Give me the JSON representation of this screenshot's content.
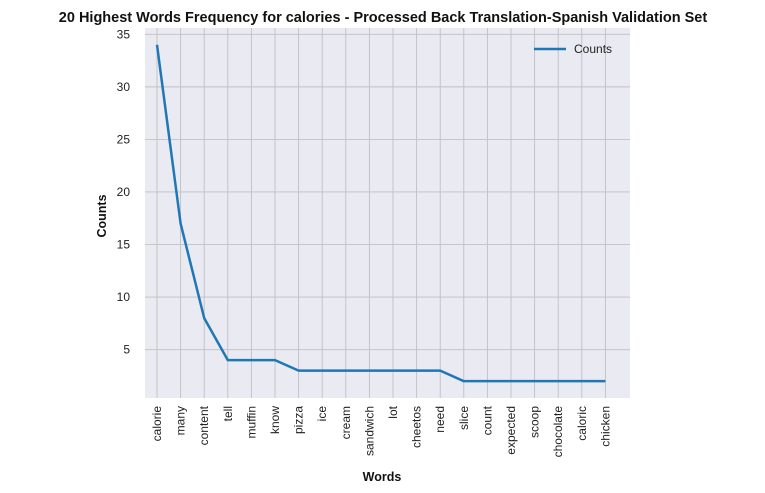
{
  "chart_data": {
    "type": "line",
    "title": "20 Highest Words Frequency for calories - Processed Back Translation-Spanish Validation Set",
    "xlabel": "Words",
    "ylabel": "Counts",
    "categories": [
      "calorie",
      "many",
      "content",
      "tell",
      "muffin",
      "know",
      "pizza",
      "ice",
      "cream",
      "sandwich",
      "lot",
      "cheetos",
      "need",
      "slice",
      "count",
      "expected",
      "scoop",
      "chocolate",
      "caloric",
      "chicken"
    ],
    "series": [
      {
        "name": "Counts",
        "values": [
          34,
          17,
          8,
          4,
          4,
          4,
          3,
          3,
          3,
          3,
          3,
          3,
          3,
          2,
          2,
          2,
          2,
          2,
          2,
          2
        ],
        "color": "#1f77b4"
      }
    ],
    "ylim": [
      0.4,
      35.6
    ],
    "yticks": [
      5,
      10,
      15,
      20,
      25,
      30,
      35
    ],
    "grid": true,
    "legend_position": "top-right",
    "background_color": "#eaeaf2",
    "grid_color": "#c0c0c0"
  }
}
